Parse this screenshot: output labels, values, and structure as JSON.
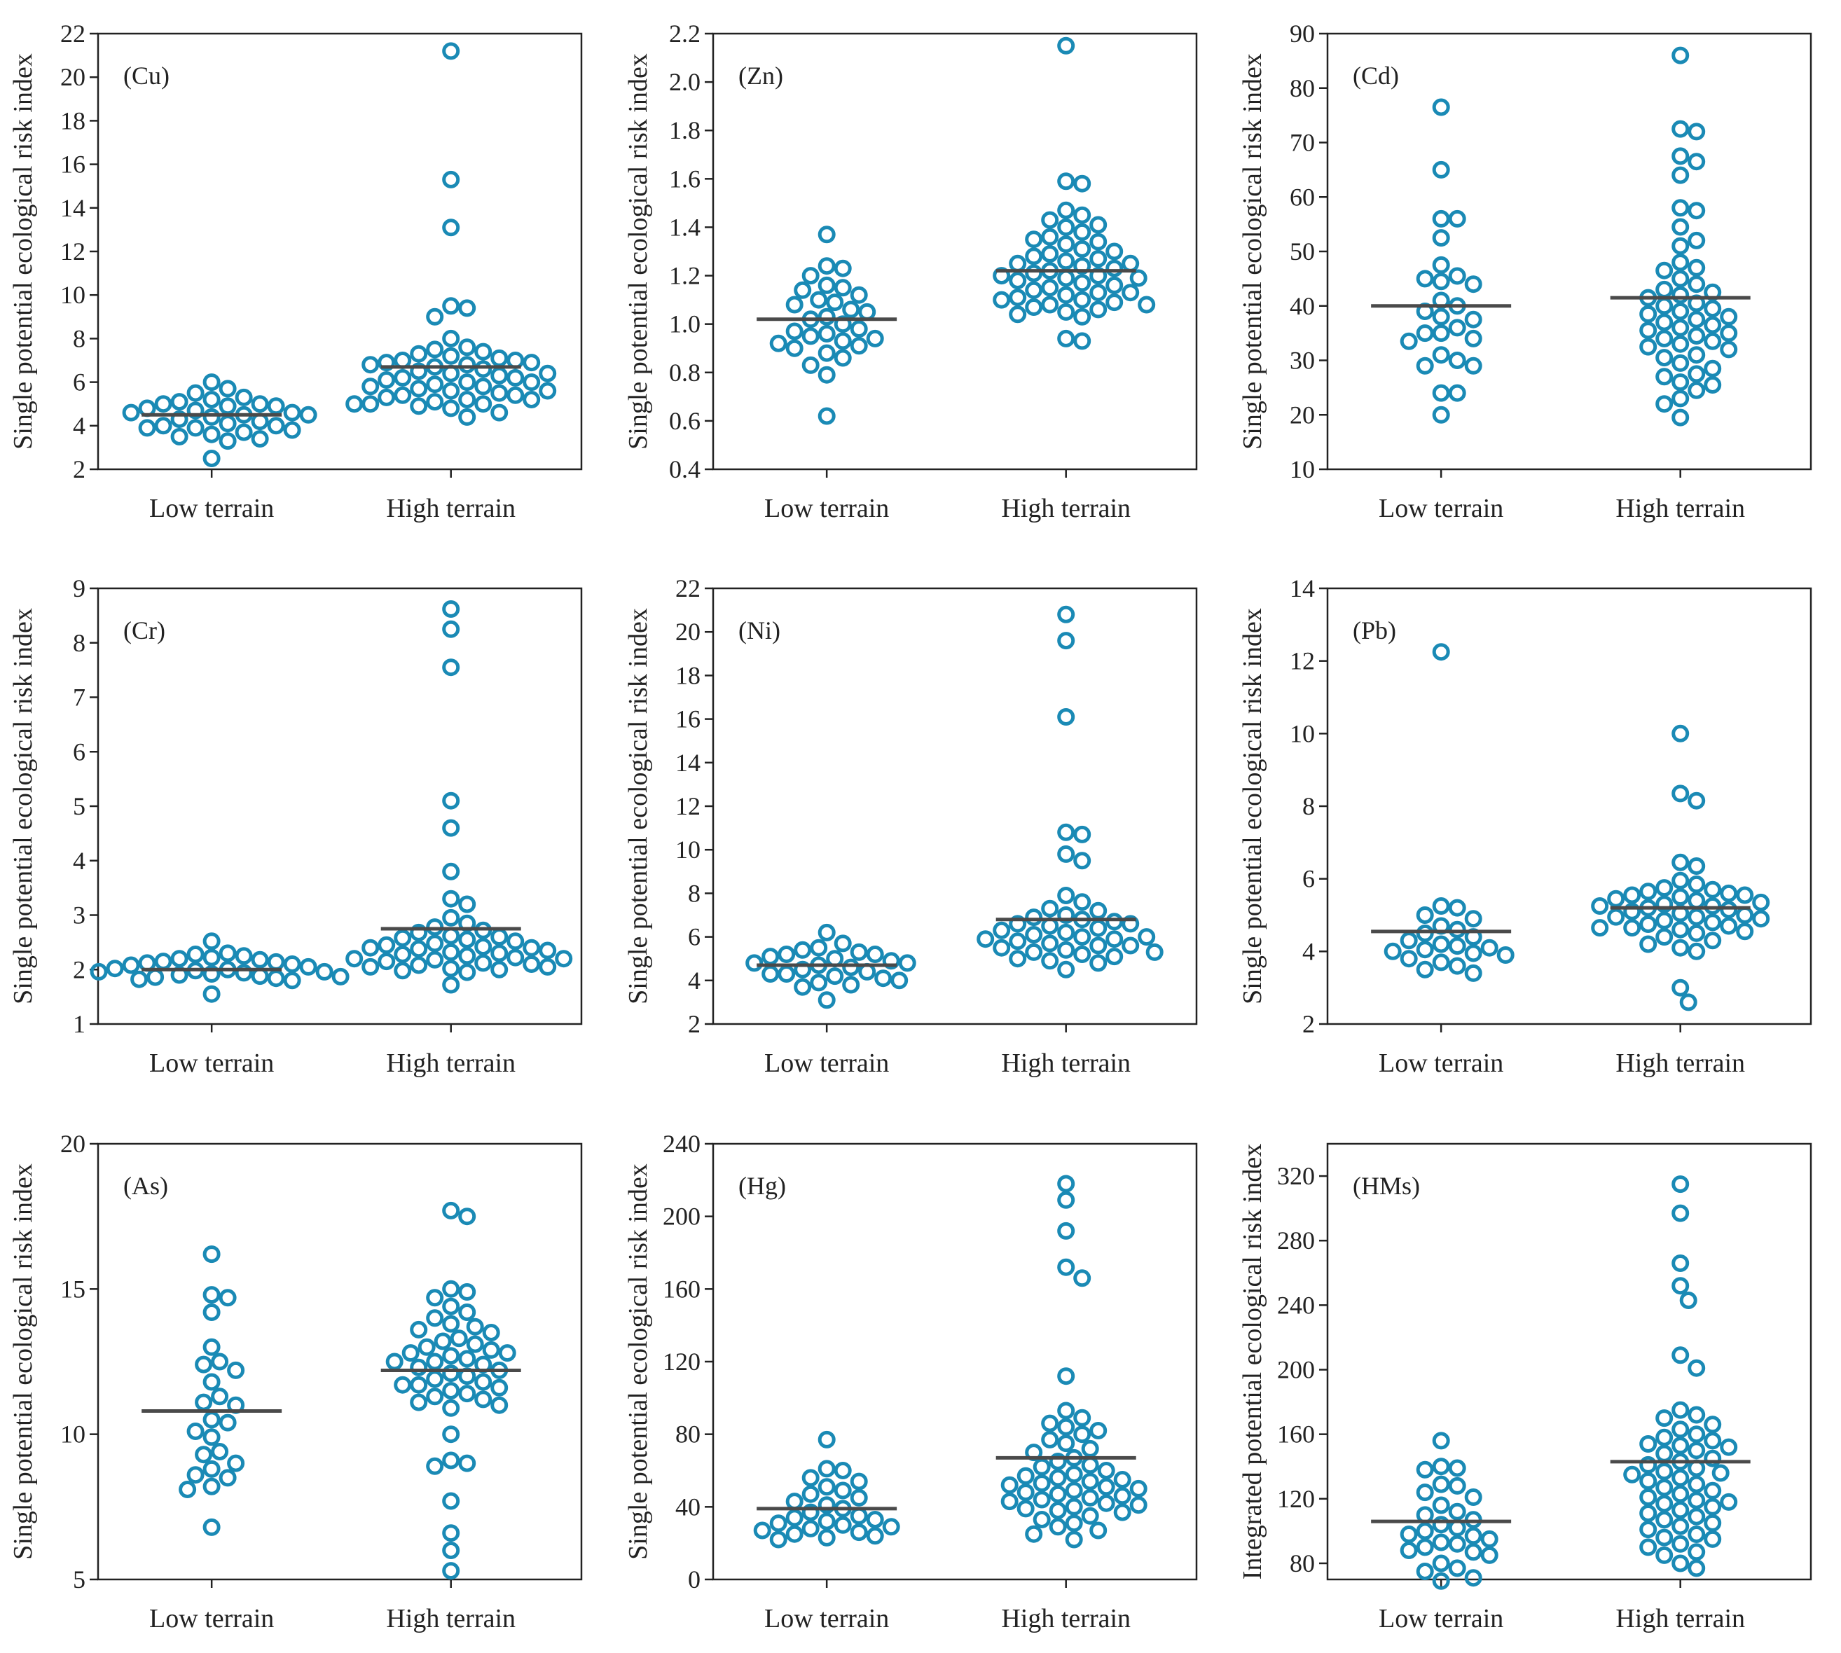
{
  "colors": {
    "point": "#1a8ab5",
    "mean_line": "#4a4a4a",
    "axis": "#222222"
  },
  "chart_data": [
    {
      "type": "scatter",
      "label": "(Cu)",
      "ylabel": "Single potential ecological risk index",
      "categories": [
        "Low terrain",
        "High terrain"
      ],
      "ylim": [
        2,
        22
      ],
      "yticks": [
        "2",
        "4",
        "6",
        "8",
        "10",
        "12",
        "14",
        "16",
        "18",
        "20",
        "22"
      ],
      "means": [
        4.5,
        6.7
      ],
      "series": [
        {
          "name": "Low terrain",
          "values": [
            5.7,
            5.3,
            5.1,
            5.0,
            4.9,
            4.8,
            4.7,
            4.6,
            4.5,
            4.4,
            4.3,
            4.2,
            4.1,
            4.0,
            3.9,
            3.8,
            3.7,
            3.6,
            3.5,
            3.3,
            5.2,
            4.9,
            6.0,
            5.5,
            4.5,
            4.0,
            3.4,
            2.5,
            5.0,
            4.6,
            3.9
          ]
        },
        {
          "name": "High terrain",
          "values": [
            21.2,
            15.3,
            13.1,
            9.5,
            9.4,
            9.0,
            8.0,
            7.6,
            7.5,
            7.3,
            7.2,
            7.1,
            7.0,
            7.0,
            6.9,
            6.8,
            6.7,
            6.6,
            6.5,
            6.4,
            6.3,
            6.2,
            6.1,
            6.0,
            6.0,
            5.9,
            5.8,
            5.7,
            5.6,
            5.5,
            5.4,
            5.3,
            5.2,
            5.1,
            5.0,
            5.0,
            4.9,
            4.8,
            4.6,
            4.4,
            6.8,
            6.2,
            5.8,
            5.4,
            7.4,
            6.4,
            5.6,
            5.2,
            6.9,
            5.0
          ]
        }
      ]
    },
    {
      "type": "scatter",
      "label": "(Zn)",
      "ylabel": "Single potential ecological risk index",
      "categories": [
        "Low terrain",
        "High terrain"
      ],
      "ylim": [
        0.4,
        2.2
      ],
      "yticks": [
        "0.4",
        "0.6",
        "0.8",
        "1.0",
        "1.2",
        "1.4",
        "1.6",
        "1.8",
        "2.0",
        "2.2"
      ],
      "means": [
        1.02,
        1.22
      ],
      "series": [
        {
          "name": "Low terrain",
          "values": [
            1.37,
            1.24,
            1.23,
            1.2,
            1.16,
            1.14,
            1.12,
            1.1,
            1.08,
            1.06,
            1.05,
            1.03,
            1.02,
            1.0,
            0.98,
            0.96,
            0.95,
            0.94,
            0.93,
            0.92,
            0.91,
            0.9,
            0.88,
            0.86,
            0.83,
            0.79,
            0.62,
            1.15,
            0.97,
            1.09
          ]
        },
        {
          "name": "High terrain",
          "values": [
            2.15,
            1.59,
            1.58,
            1.47,
            1.45,
            1.43,
            1.41,
            1.4,
            1.38,
            1.36,
            1.34,
            1.33,
            1.31,
            1.3,
            1.29,
            1.28,
            1.27,
            1.26,
            1.25,
            1.24,
            1.23,
            1.22,
            1.21,
            1.2,
            1.19,
            1.18,
            1.17,
            1.16,
            1.15,
            1.14,
            1.13,
            1.12,
            1.11,
            1.1,
            1.09,
            1.08,
            1.07,
            1.06,
            1.05,
            1.04,
            1.03,
            0.94,
            0.93,
            1.25,
            1.19,
            1.13,
            1.08,
            1.35,
            1.2,
            1.1
          ]
        }
      ]
    },
    {
      "type": "scatter",
      "label": "(Cd)",
      "ylabel": "Single potential ecological risk index",
      "categories": [
        "Low terrain",
        "High terrain"
      ],
      "ylim": [
        10,
        90
      ],
      "yticks": [
        "10",
        "20",
        "30",
        "40",
        "50",
        "60",
        "70",
        "80",
        "90"
      ],
      "means": [
        40,
        41.5
      ],
      "series": [
        {
          "name": "Low terrain",
          "values": [
            76.5,
            65,
            56,
            56,
            52.5,
            47.5,
            45.5,
            45,
            44.5,
            44,
            41,
            40,
            39,
            38,
            37.5,
            36,
            35,
            35,
            34,
            33.5,
            31,
            30,
            29,
            29,
            24,
            24,
            20
          ]
        },
        {
          "name": "High terrain",
          "values": [
            86,
            72.5,
            72,
            67.5,
            66.5,
            64,
            58,
            57.5,
            54.5,
            52,
            51,
            48,
            47,
            46.5,
            45,
            44,
            42.5,
            42,
            41.5,
            40.5,
            40,
            39.5,
            38.5,
            38,
            37.5,
            37,
            36,
            35.5,
            35,
            34.5,
            34,
            33.5,
            33,
            32,
            31,
            30.5,
            29.5,
            28.5,
            27.5,
            27,
            26,
            25.5,
            24.5,
            23,
            22,
            19.5,
            43,
            39,
            36.5,
            32.5
          ]
        }
      ]
    },
    {
      "type": "scatter",
      "label": "(Cr)",
      "ylabel": "Single potential ecological risk index",
      "categories": [
        "Low terrain",
        "High terrain"
      ],
      "ylim": [
        1,
        9
      ],
      "yticks": [
        "1",
        "2",
        "3",
        "4",
        "5",
        "6",
        "7",
        "8",
        "9"
      ],
      "means": [
        2.0,
        2.75
      ],
      "series": [
        {
          "name": "Low terrain",
          "values": [
            2.52,
            2.3,
            2.28,
            2.25,
            2.22,
            2.2,
            2.18,
            2.15,
            2.12,
            2.1,
            2.08,
            2.05,
            2.02,
            2.0,
            1.98,
            1.96,
            1.94,
            1.92,
            1.9,
            1.88,
            1.86,
            1.84,
            1.82,
            1.8,
            1.55,
            2.14,
            1.96,
            1.87
          ]
        },
        {
          "name": "High terrain",
          "values": [
            8.62,
            8.25,
            7.55,
            5.1,
            4.6,
            3.8,
            3.3,
            3.2,
            2.95,
            2.85,
            2.78,
            2.72,
            2.68,
            2.62,
            2.58,
            2.55,
            2.52,
            2.48,
            2.45,
            2.42,
            2.4,
            2.38,
            2.35,
            2.32,
            2.3,
            2.28,
            2.25,
            2.22,
            2.2,
            2.18,
            2.15,
            2.12,
            2.1,
            2.08,
            2.05,
            2.02,
            2.0,
            1.98,
            1.95,
            1.72,
            2.6,
            2.4,
            2.2,
            2.05
          ]
        }
      ]
    },
    {
      "type": "scatter",
      "label": "(Ni)",
      "ylabel": "Single potential ecological risk index",
      "categories": [
        "Low terrain",
        "High terrain"
      ],
      "ylim": [
        2,
        22
      ],
      "yticks": [
        "2",
        "4",
        "6",
        "8",
        "10",
        "12",
        "14",
        "16",
        "18",
        "20",
        "22"
      ],
      "means": [
        4.7,
        6.8
      ],
      "series": [
        {
          "name": "Low terrain",
          "values": [
            6.2,
            5.7,
            5.5,
            5.4,
            5.3,
            5.2,
            5.1,
            5.0,
            4.9,
            4.8,
            4.7,
            4.6,
            4.5,
            4.4,
            4.3,
            4.2,
            4.1,
            4.0,
            3.9,
            3.8,
            3.7,
            3.1,
            5.2,
            4.8,
            4.3
          ]
        },
        {
          "name": "High terrain",
          "values": [
            20.8,
            19.6,
            16.1,
            10.8,
            10.7,
            9.8,
            9.5,
            7.9,
            7.6,
            7.2,
            7.0,
            6.9,
            6.8,
            6.7,
            6.6,
            6.5,
            6.4,
            6.3,
            6.2,
            6.1,
            6.0,
            5.9,
            5.8,
            5.7,
            5.6,
            5.5,
            5.4,
            5.3,
            5.2,
            5.1,
            5.0,
            4.9,
            4.8,
            4.5,
            6.6,
            6.0,
            5.6,
            5.3,
            7.3,
            5.9
          ]
        }
      ]
    },
    {
      "type": "scatter",
      "label": "(Pb)",
      "ylabel": "Single potential ecological risk index",
      "categories": [
        "Low terrain",
        "High terrain"
      ],
      "ylim": [
        2,
        14
      ],
      "yticks": [
        "2",
        "4",
        "6",
        "8",
        "10",
        "12",
        "14"
      ],
      "means": [
        4.55,
        5.2
      ],
      "series": [
        {
          "name": "Low terrain",
          "values": [
            12.25,
            5.25,
            5.2,
            5.0,
            4.9,
            4.7,
            4.6,
            4.5,
            4.4,
            4.3,
            4.2,
            4.1,
            4.0,
            3.9,
            3.8,
            3.7,
            3.6,
            3.5,
            3.4,
            4.15,
            4.05,
            3.95
          ]
        },
        {
          "name": "High terrain",
          "values": [
            10.0,
            8.35,
            8.15,
            6.45,
            6.35,
            5.95,
            5.85,
            5.75,
            5.7,
            5.65,
            5.6,
            5.55,
            5.5,
            5.45,
            5.4,
            5.35,
            5.3,
            5.25,
            5.2,
            5.15,
            5.1,
            5.05,
            5.0,
            4.95,
            4.9,
            4.85,
            4.8,
            4.75,
            4.7,
            4.65,
            4.6,
            4.55,
            4.5,
            4.4,
            4.3,
            4.2,
            4.1,
            4.0,
            3.0,
            2.6,
            5.55,
            5.25,
            4.95,
            4.65
          ]
        }
      ]
    },
    {
      "type": "scatter",
      "label": "(As)",
      "ylabel": "Single potential ecological risk index",
      "categories": [
        "Low terrain",
        "High terrain"
      ],
      "ylim": [
        5,
        20
      ],
      "yticks": [
        "5",
        "10",
        "15",
        "20"
      ],
      "means": [
        10.8,
        12.2
      ],
      "series": [
        {
          "name": "Low terrain",
          "values": [
            16.2,
            14.8,
            14.7,
            14.2,
            13.0,
            12.5,
            12.4,
            12.2,
            11.8,
            11.3,
            11.1,
            11.0,
            10.5,
            10.4,
            10.1,
            9.9,
            9.4,
            9.3,
            9.0,
            8.8,
            8.6,
            8.5,
            8.2,
            8.1,
            6.8
          ]
        },
        {
          "name": "High terrain",
          "values": [
            17.7,
            17.5,
            15.0,
            14.9,
            14.7,
            14.4,
            14.2,
            14.0,
            13.8,
            13.7,
            13.6,
            13.5,
            13.3,
            13.2,
            13.0,
            12.9,
            12.8,
            12.7,
            12.6,
            12.5,
            12.4,
            12.3,
            12.2,
            12.1,
            12.0,
            11.9,
            11.8,
            11.7,
            11.6,
            11.5,
            11.4,
            11.3,
            11.2,
            11.1,
            11.0,
            10.9,
            10.0,
            9.1,
            9.0,
            8.9,
            7.7,
            6.6,
            6.0,
            5.3,
            12.5,
            11.7,
            13.1,
            12.8
          ]
        }
      ]
    },
    {
      "type": "scatter",
      "label": "(Hg)",
      "ylabel": "Single potential ecological risk index",
      "categories": [
        "Low terrain",
        "High terrain"
      ],
      "ylim": [
        0,
        240
      ],
      "yticks": [
        "0",
        "40",
        "80",
        "120",
        "160",
        "200",
        "240"
      ],
      "means": [
        39,
        67
      ],
      "series": [
        {
          "name": "Low terrain",
          "values": [
            77,
            61,
            60,
            56,
            54,
            51,
            49,
            47,
            45,
            43,
            41,
            39,
            37,
            35,
            34,
            33,
            32,
            31,
            30,
            29,
            28,
            27,
            26,
            25,
            24,
            23,
            22
          ]
        },
        {
          "name": "High terrain",
          "values": [
            218,
            209,
            192,
            172,
            166,
            112,
            93,
            89,
            86,
            84,
            82,
            80,
            77,
            75,
            72,
            70,
            67,
            65,
            62,
            60,
            58,
            56,
            55,
            54,
            53,
            52,
            51,
            50,
            48,
            47,
            46,
            45,
            44,
            43,
            42,
            41,
            40,
            39,
            37,
            35,
            33,
            31,
            29,
            27,
            25,
            22,
            63,
            57,
            49,
            38
          ]
        }
      ]
    },
    {
      "type": "scatter",
      "label": "(HMs)",
      "ylabel": "Integrated potential ecological risk index",
      "categories": [
        "Low terrain",
        "High terrain"
      ],
      "ylim": [
        70,
        340
      ],
      "yticks": [
        "80",
        "120",
        "160",
        "200",
        "240",
        "280",
        "320"
      ],
      "means": [
        106,
        143
      ],
      "series": [
        {
          "name": "Low terrain",
          "values": [
            156,
            140,
            139,
            138,
            129,
            128,
            124,
            121,
            116,
            112,
            110,
            107,
            104,
            102,
            100,
            98,
            97,
            95,
            93,
            92,
            90,
            88,
            87,
            85,
            80,
            77,
            75,
            71,
            69
          ]
        },
        {
          "name": "High terrain",
          "values": [
            315,
            297,
            266,
            252,
            243,
            209,
            201,
            175,
            172,
            170,
            166,
            163,
            160,
            158,
            156,
            154,
            152,
            150,
            148,
            145,
            143,
            141,
            139,
            137,
            135,
            133,
            131,
            129,
            127,
            125,
            123,
            121,
            119,
            117,
            115,
            113,
            111,
            109,
            107,
            105,
            103,
            101,
            98,
            95,
            92,
            90,
            87,
            85,
            80,
            77,
            153,
            136,
            118,
            96
          ]
        }
      ]
    }
  ]
}
